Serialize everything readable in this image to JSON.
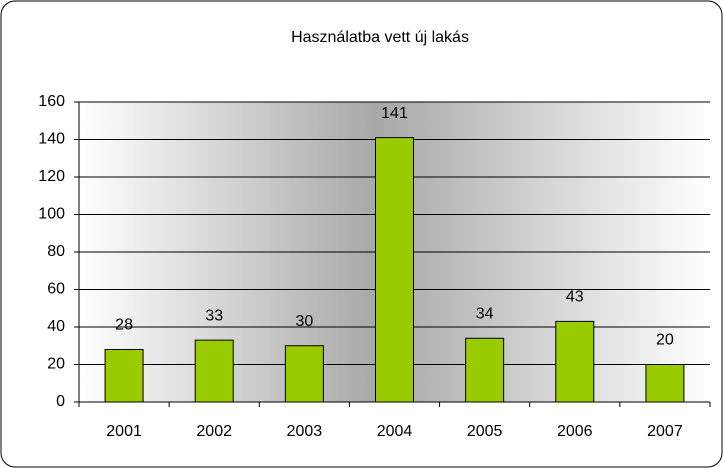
{
  "chart_data": {
    "type": "bar",
    "title": "Használatba vett új lakás",
    "categories": [
      "2001",
      "2002",
      "2003",
      "2004",
      "2005",
      "2006",
      "2007"
    ],
    "values": [
      28,
      33,
      30,
      141,
      34,
      43,
      20
    ],
    "color": "#99cc00",
    "ylim": [
      0,
      160
    ],
    "yticks": [
      0,
      20,
      40,
      60,
      80,
      100,
      120,
      140,
      160
    ],
    "grid": true
  }
}
